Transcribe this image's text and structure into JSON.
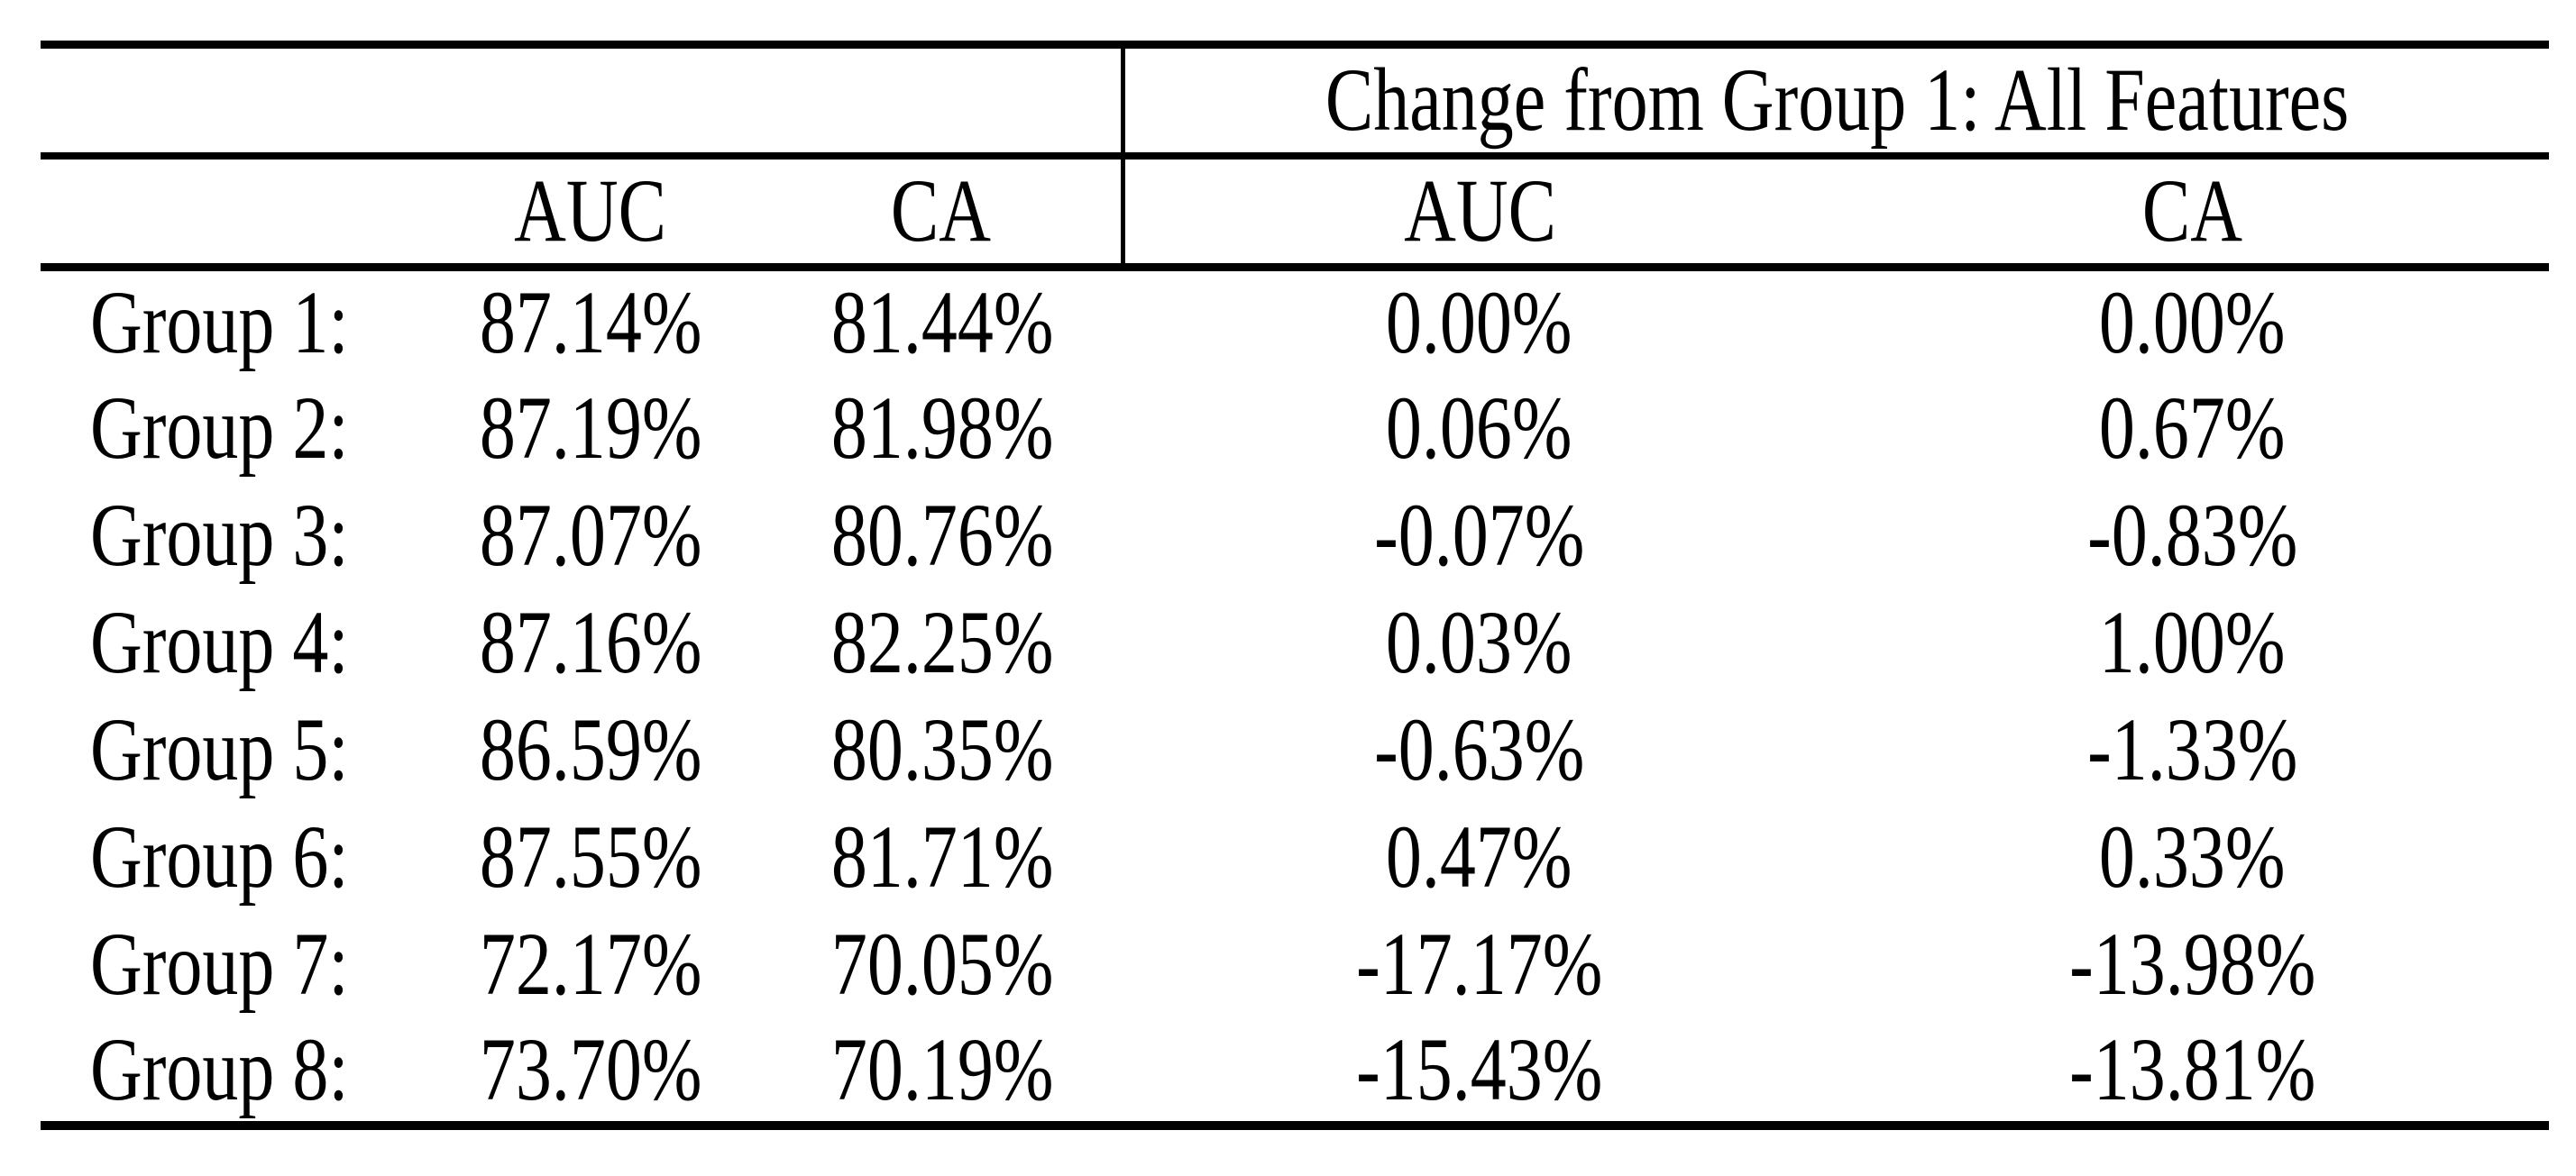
{
  "table": {
    "span_header": "Change from Group 1: All Features",
    "col_headers": {
      "auc": "AUC",
      "ca": "CA"
    },
    "rows": [
      {
        "label": "Group 1:",
        "auc": "87.14%",
        "ca": "81.44%",
        "d_auc": "0.00%",
        "d_ca": "0.00%"
      },
      {
        "label": "Group 2:",
        "auc": "87.19%",
        "ca": "81.98%",
        "d_auc": "0.06%",
        "d_ca": "0.67%"
      },
      {
        "label": "Group 3:",
        "auc": "87.07%",
        "ca": "80.76%",
        "d_auc": "-0.07%",
        "d_ca": "-0.83%"
      },
      {
        "label": "Group 4:",
        "auc": "87.16%",
        "ca": "82.25%",
        "d_auc": "0.03%",
        "d_ca": "1.00%"
      },
      {
        "label": "Group 5:",
        "auc": "86.59%",
        "ca": "80.35%",
        "d_auc": "-0.63%",
        "d_ca": "-1.33%"
      },
      {
        "label": "Group 6:",
        "auc": "87.55%",
        "ca": "81.71%",
        "d_auc": "0.47%",
        "d_ca": "0.33%"
      },
      {
        "label": "Group 7:",
        "auc": "72.17%",
        "ca": "70.05%",
        "d_auc": "-17.17%",
        "d_ca": "-13.98%"
      },
      {
        "label": "Group 8:",
        "auc": "73.70%",
        "ca": "70.19%",
        "d_auc": "-15.43%",
        "d_ca": "-13.81%"
      }
    ]
  },
  "colors": {
    "text": "#000000",
    "rule": "#000000",
    "background": "#ffffff"
  },
  "chart_data": {
    "type": "table",
    "title": "",
    "columns": [
      "Group",
      "AUC",
      "CA",
      "Change from Group 1: All Features - AUC",
      "Change from Group 1: All Features - CA"
    ],
    "units": "%",
    "rows": [
      [
        "Group 1",
        87.14,
        81.44,
        0.0,
        0.0
      ],
      [
        "Group 2",
        87.19,
        81.98,
        0.06,
        0.67
      ],
      [
        "Group 3",
        87.07,
        80.76,
        -0.07,
        -0.83
      ],
      [
        "Group 4",
        87.16,
        82.25,
        0.03,
        1.0
      ],
      [
        "Group 5",
        86.59,
        80.35,
        -0.63,
        -1.33
      ],
      [
        "Group 6",
        87.55,
        81.71,
        0.47,
        0.33
      ],
      [
        "Group 7",
        72.17,
        70.05,
        -17.17,
        -13.98
      ],
      [
        "Group 8",
        73.7,
        70.19,
        -15.43,
        -13.81
      ]
    ]
  }
}
